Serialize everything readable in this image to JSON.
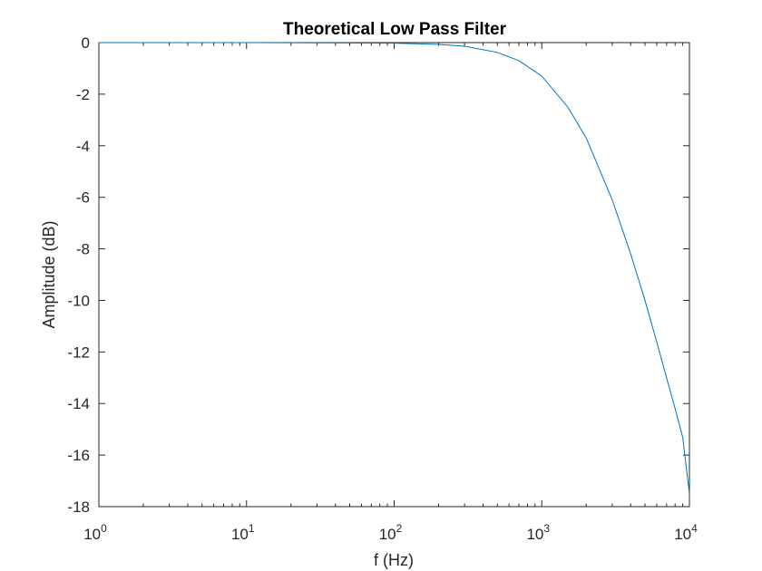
{
  "chart_data": {
    "type": "line",
    "title": "Theoretical Low Pass Filter",
    "xlabel": "f (Hz)",
    "ylabel": "Amplitude (dB)",
    "xscale": "log",
    "xlim": [
      1,
      10000
    ],
    "ylim": [
      -18,
      0
    ],
    "grid": false,
    "legend": "none",
    "line_color": "#0072BD",
    "x_ticks": [
      {
        "value": 1,
        "base": "10",
        "exp": "0"
      },
      {
        "value": 10,
        "base": "10",
        "exp": "1"
      },
      {
        "value": 100,
        "base": "10",
        "exp": "2"
      },
      {
        "value": 1000,
        "base": "10",
        "exp": "3"
      },
      {
        "value": 10000,
        "base": "10",
        "exp": "4"
      }
    ],
    "y_ticks": [
      {
        "value": 0,
        "label": "0"
      },
      {
        "value": -2,
        "label": "-2"
      },
      {
        "value": -4,
        "label": "-4"
      },
      {
        "value": -6,
        "label": "-6"
      },
      {
        "value": -8,
        "label": "-8"
      },
      {
        "value": -10,
        "label": "-10"
      },
      {
        "value": -12,
        "label": "-12"
      },
      {
        "value": -14,
        "label": "-14"
      },
      {
        "value": -16,
        "label": "-16"
      },
      {
        "value": -18,
        "label": "-18"
      }
    ],
    "series": [
      {
        "x": [
          1,
          10,
          100,
          200,
          300,
          500,
          700,
          1000,
          1500,
          2000,
          3000,
          4000,
          5000,
          6000,
          7000,
          8000,
          9000,
          10000
        ],
        "y": [
          0,
          0,
          -0.02,
          -0.07,
          -0.14,
          -0.38,
          -0.7,
          -1.3,
          -2.5,
          -3.7,
          -6.1,
          -8.2,
          -10.0,
          -11.6,
          -13.0,
          -14.2,
          -15.3,
          -17.5
        ]
      }
    ]
  }
}
